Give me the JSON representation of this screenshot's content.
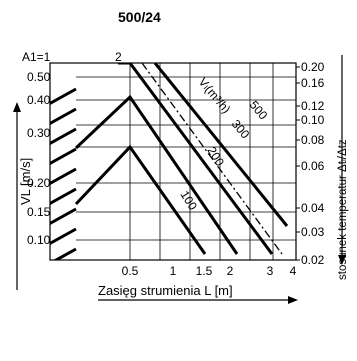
{
  "chart_data": {
    "type": "line",
    "title": "500/24",
    "xlabel": "Zasięg strumienia L [m]",
    "ylabel_left": "VL [m/s]",
    "ylabel_right": "stosunek temperatur  Δtₗ/Δtz",
    "x_ticks": [
      "0.5",
      "1",
      "1.5",
      "2",
      "3",
      "4"
    ],
    "y_left_ticks": [
      "0.50",
      "0.40",
      "0.30",
      "0.20",
      "0.15",
      "0.10"
    ],
    "y_right_ticks": [
      "0.20",
      "0.16",
      "0.12",
      "0.10",
      "0.08",
      "0.06",
      "0.04",
      "0.03",
      "0.02"
    ],
    "ratio_labels": [
      "A1=1",
      "2"
    ],
    "flow_axis_label": "Vₗ(m³/h)",
    "series": [
      {
        "name": "100",
        "points": [
          [
            0.5,
            0.228
          ],
          [
            2.0,
            0.084
          ]
        ]
      },
      {
        "name": "200",
        "points": [
          [
            0.5,
            0.318
          ],
          [
            3.0,
            0.084
          ]
        ]
      },
      {
        "name": "300",
        "points": [
          [
            0.75,
            0.53
          ],
          [
            4.0,
            0.084
          ]
        ]
      },
      {
        "name": "500",
        "points": [
          [
            1.0,
            0.53
          ],
          [
            4.0,
            0.123
          ]
        ]
      }
    ],
    "dash_dot_line": {
      "points": [
        [
          0.75,
          0.53
        ],
        [
          4.0,
          0.084
        ]
      ]
    },
    "left_hatch_lines": 9,
    "grid": true
  }
}
